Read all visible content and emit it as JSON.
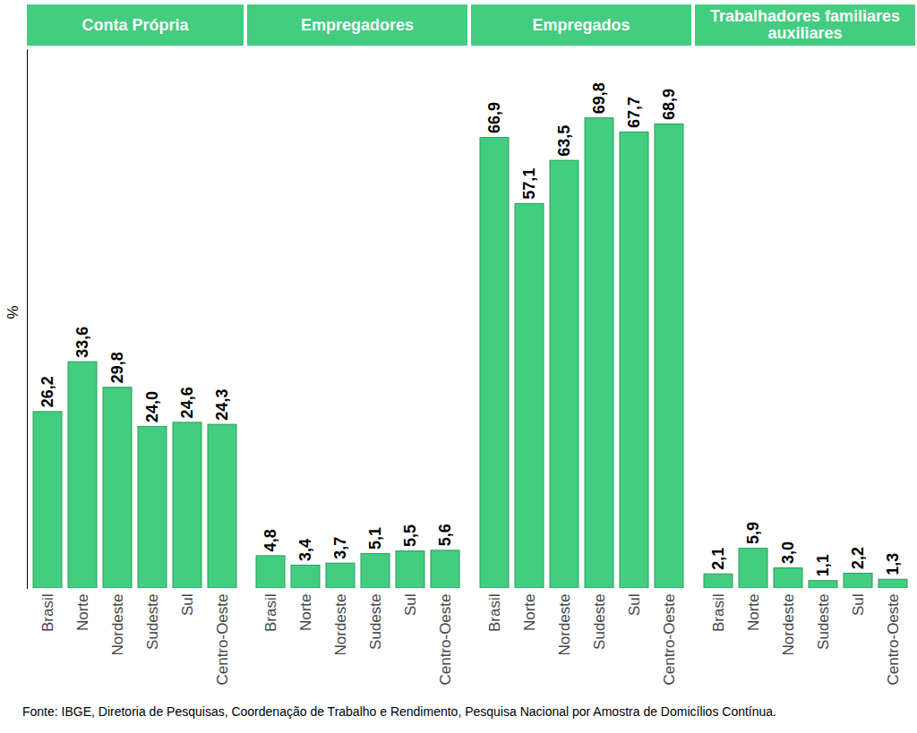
{
  "chart_data": [
    {
      "type": "bar",
      "title": "Conta Própria",
      "ylabel": "%",
      "categories": [
        "Brasil",
        "Norte",
        "Nordeste",
        "Sudeste",
        "Sul",
        "Centro-Oeste"
      ],
      "values": [
        26.2,
        33.6,
        29.8,
        24.0,
        24.6,
        24.3
      ],
      "value_labels": [
        "26,2",
        "33,6",
        "29,8",
        "24,0",
        "24,6",
        "24,3"
      ],
      "color": "#43cd80",
      "ylim": [
        0,
        80
      ],
      "yticks": [],
      "data_labels": true,
      "tick_labels": "x"
    },
    {
      "type": "bar",
      "title": "Empregadores",
      "categories": [
        "Brasil",
        "Norte",
        "Nordeste",
        "Sudeste",
        "Sul",
        "Centro-Oeste"
      ],
      "values": [
        4.8,
        3.4,
        3.7,
        5.1,
        5.5,
        5.6
      ],
      "value_labels": [
        "4,8",
        "3,4",
        "3,7",
        "5,1",
        "5,5",
        "5,6"
      ],
      "color": "#43cd80",
      "ylim": [
        0,
        80
      ],
      "yticks": [],
      "data_labels": true,
      "tick_labels": "x"
    },
    {
      "type": "bar",
      "title": "Empregados",
      "categories": [
        "Brasil",
        "Norte",
        "Nordeste",
        "Sudeste",
        "Sul",
        "Centro-Oeste"
      ],
      "values": [
        66.9,
        57.1,
        63.5,
        69.8,
        67.7,
        68.9
      ],
      "value_labels": [
        "66,9",
        "57,1",
        "63,5",
        "69,8",
        "67,7",
        "68,9"
      ],
      "color": "#43cd80",
      "ylim": [
        0,
        80
      ],
      "yticks": [],
      "data_labels": true,
      "tick_labels": "x"
    },
    {
      "type": "bar",
      "title": "Trabalhadores familiares auxiliares",
      "categories": [
        "Brasil",
        "Norte",
        "Nordeste",
        "Sudeste",
        "Sul",
        "Centro-Oeste"
      ],
      "values": [
        2.1,
        5.9,
        3.0,
        1.1,
        2.2,
        1.3
      ],
      "value_labels": [
        "2,1",
        "5,9",
        "3,0",
        "1,1",
        "2,2",
        "1,3"
      ],
      "color": "#43cd80",
      "ylim": [
        0,
        80
      ],
      "yticks": [],
      "data_labels": true,
      "tick_labels": "x"
    }
  ],
  "caption": "Fonte: IBGE, Diretoria de Pesquisas, Coordenação de Trabalho e Rendimento, Pesquisa Nacional por Amostra de Domicílios Contínua."
}
